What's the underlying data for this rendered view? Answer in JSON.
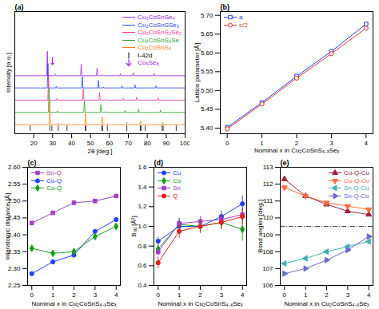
{
  "chart_data": [
    {
      "type": "spectrum",
      "title": "(a)",
      "x_label": "2θ [deg.]",
      "y_label": "Intensity [a.u.]",
      "xlim": [
        10,
        100
      ],
      "xticks": [
        20,
        30,
        40,
        50,
        60,
        70,
        80,
        90,
        100
      ],
      "ylim": [
        -0.6,
        7.4
      ],
      "tick_labels": "x",
      "legend": "top-right",
      "series": [
        {
          "name": "Cu₂CoSnSe₄",
          "color": "#a020f0",
          "offset": 3.2,
          "peak_positions": [
            27.2,
            31.5,
            45.1,
            53.5,
            56.1,
            65.8,
            72.6,
            83.6
          ],
          "peak_intensities": [
            1.6,
            0.1,
            0.75,
            0.5,
            0.06,
            0.13,
            0.2,
            0.15
          ]
        },
        {
          "name": "Cu₂CoSnSSe₃",
          "color": "#1f3fff",
          "offset": 2.4,
          "peak_positions": [
            27.5,
            31.9,
            45.7,
            54.2,
            56.8,
            66.6,
            73.5,
            84.7
          ],
          "peak_intensities": [
            1.6,
            0.1,
            0.75,
            0.5,
            0.06,
            0.13,
            0.2,
            0.15
          ]
        },
        {
          "name": "Cu₂CoSnS₂Se₂",
          "color": "#ff3399",
          "offset": 1.6,
          "peak_positions": [
            27.8,
            32.2,
            46.2,
            54.8,
            57.5,
            67.4,
            74.4,
            85.8
          ],
          "peak_intensities": [
            1.6,
            0.1,
            0.75,
            0.5,
            0.06,
            0.13,
            0.2,
            0.15
          ]
        },
        {
          "name": "Cu₂CoSnS₃Se",
          "color": "#2ca02c",
          "offset": 0.8,
          "peak_positions": [
            28.1,
            32.6,
            46.8,
            55.5,
            58.2,
            68.3,
            75.4,
            87.0
          ],
          "peak_intensities": [
            1.6,
            0.1,
            0.75,
            0.5,
            0.06,
            0.13,
            0.2,
            0.15
          ]
        },
        {
          "name": "Cu₂CoSnS₄",
          "color": "#ff7f0e",
          "offset": 0,
          "peak_positions": [
            28.5,
            33.0,
            47.4,
            56.2,
            59.0,
            69.2,
            76.4,
            88.2
          ],
          "peak_intensities": [
            1.6,
            0.1,
            0.75,
            0.5,
            0.06,
            0.13,
            0.2,
            0.15
          ]
        }
      ],
      "reflections": {
        "name": "I-42d",
        "color": "#000000",
        "positions": [
          18.2,
          28.5,
          29.6,
          33.0,
          37.6,
          47.3,
          47.6,
          56.0,
          56.4,
          58.9,
          69.2,
          76.3,
          76.7,
          78.9,
          87.9,
          88.4,
          95.3
        ]
      },
      "impurity": {
        "name": "Co₉Se₈",
        "color": "#a020f0",
        "x": [
          29.9
        ],
        "y": [
          4.4
        ]
      }
    },
    {
      "type": "line",
      "title": "(b)",
      "x_label": "Nominal x in Cu₂CoSnS₄₋ₓSeₓ",
      "y_label": "Lattice parameter [Å]",
      "x": [
        0,
        1,
        2,
        3,
        4
      ],
      "xlim": [
        -0.2,
        4.2
      ],
      "xticks": [
        0,
        1,
        2,
        3,
        4
      ],
      "ylim": [
        5.385,
        5.71
      ],
      "yticks": [
        {
          "value": 5.4,
          "label": "5.40"
        },
        5.45,
        {
          "value": 5.5,
          "label": "5.50"
        },
        5.55,
        {
          "value": 5.6,
          "label": "5.60"
        },
        5.65,
        {
          "value": 5.7,
          "label": "5.70"
        }
      ],
      "legend": "top-left",
      "series": [
        {
          "name": "a",
          "color": "#1f3fff",
          "marker": "square-open",
          "values": [
            5.402,
            5.468,
            5.538,
            5.604,
            5.677
          ]
        },
        {
          "name": "c/2",
          "color": "#e8302a",
          "marker": "circle-open",
          "values": [
            5.398,
            5.464,
            5.533,
            5.598,
            5.666
          ]
        }
      ]
    },
    {
      "type": "line",
      "title": "(c)",
      "x_label": "Nominal x in Cu₂CoSnS₄₋ₓSeₓ",
      "y_label": "Interatomic distance [Å]",
      "x": [
        0,
        1,
        2,
        3,
        4
      ],
      "xlim": [
        -0.2,
        4.2
      ],
      "xticks": [
        0,
        1,
        2,
        3,
        4
      ],
      "ylim": [
        2.25,
        2.6
      ],
      "yticks": [
        2.25,
        {
          "value": 2.3,
          "label": "2.30"
        },
        2.35,
        {
          "value": 2.4,
          "label": "2.40"
        },
        2.45,
        {
          "value": 2.5,
          "label": "2.50"
        },
        2.55,
        {
          "value": 2.6,
          "label": "2.60"
        }
      ],
      "legend": "top-left",
      "series": [
        {
          "name": "Sn-Q",
          "color": "#a040c0",
          "marker": "square",
          "values": [
            2.435,
            2.465,
            2.495,
            2.5,
            2.515
          ]
        },
        {
          "name": "Cu-Q",
          "color": "#2040ff",
          "marker": "circle",
          "values": [
            2.285,
            2.32,
            2.34,
            2.41,
            2.445
          ]
        },
        {
          "name": "Co-Q",
          "color": "#10a010",
          "marker": "diamond",
          "values": [
            2.36,
            2.345,
            2.35,
            2.395,
            2.425
          ]
        }
      ]
    },
    {
      "type": "line",
      "title": "(d)",
      "x_label": "Nominal x in Cu₂CoSnS₄₋ₓSeₓ",
      "y_label": "Bᵢₛₒ [Å²]",
      "x": [
        0,
        1,
        2,
        3,
        4
      ],
      "xlim": [
        -0.2,
        4.2
      ],
      "xticks": [
        0,
        1,
        2,
        3,
        4
      ],
      "ylim": [
        0.4,
        1.6
      ],
      "yticks": [
        0.4,
        0.6,
        0.8,
        {
          "value": 1,
          "label": "1.0"
        },
        1.2,
        1.4,
        1.6
      ],
      "legend": "top-left",
      "series": [
        {
          "name": "Cu",
          "color": "#2040ff",
          "marker": "circle",
          "values": [
            0.85,
            1.0,
            1.0,
            1.1,
            1.23
          ],
          "errors": [
            0.04,
            0.06,
            0.06,
            0.06,
            0.08
          ]
        },
        {
          "name": "Co",
          "color": "#10a010",
          "marker": "diamond",
          "values": [
            0.77,
            1.02,
            1.0,
            1.04,
            0.97
          ],
          "errors": [
            0.05,
            0.06,
            0.06,
            0.07,
            0.12
          ]
        },
        {
          "name": "Sn",
          "color": "#a040c0",
          "marker": "square",
          "values": [
            0.74,
            1.03,
            1.05,
            1.07,
            1.12
          ],
          "errors": [
            0.04,
            0.05,
            0.05,
            0.05,
            0.06
          ]
        },
        {
          "name": "Q",
          "color": "#e02020",
          "marker": "circle",
          "values": [
            0.63,
            0.95,
            1.0,
            1.04,
            1.1
          ],
          "errors": [
            0.06,
            0.07,
            0.07,
            0.07,
            0.08
          ]
        }
      ]
    },
    {
      "type": "line",
      "title": "(e)",
      "x_label": "Nominal x in Cu₂CoSnS₄₋ₓSeₓ",
      "y_label": "Bond angles [deg.]",
      "x": [
        0,
        1,
        2,
        3,
        4
      ],
      "xlim": [
        -0.2,
        4.2
      ],
      "xticks": [
        0,
        1,
        2,
        3,
        4
      ],
      "ylim": [
        106,
        113
      ],
      "yticks": [
        106,
        107,
        108,
        109,
        110,
        111,
        112,
        113
      ],
      "reference_line": 109.5,
      "legend": "top-right",
      "series": [
        {
          "name": "Cu-Q-Cu",
          "color": "#a0203a",
          "marker": "triangle-up",
          "values": [
            112.3,
            111.3,
            110.8,
            110.4,
            110.2
          ]
        },
        {
          "name": "Cu-Q-Co",
          "color": "#ff6a3d",
          "marker": "triangle-down",
          "values": [
            111.8,
            111.3,
            110.9,
            110.7,
            110.5
          ]
        },
        {
          "name": "Sn-Q-Cu",
          "color": "#40b0b0",
          "marker": "triangle-left",
          "values": [
            107.3,
            107.6,
            108.0,
            108.3,
            108.6
          ]
        },
        {
          "name": "Sn-Q-Co",
          "color": "#6a6ad0",
          "marker": "triangle-right",
          "values": [
            106.7,
            107.0,
            107.5,
            108.1,
            108.9
          ]
        }
      ]
    }
  ]
}
